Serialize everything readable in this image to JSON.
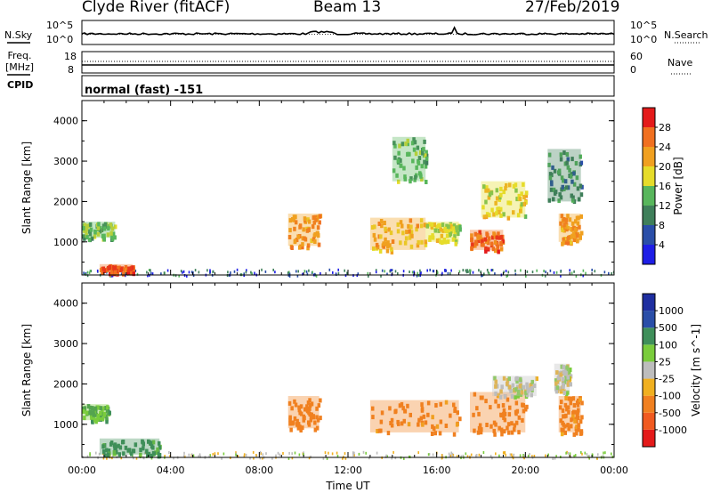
{
  "header": {
    "station": "Clyde River (fitACF)",
    "beam": "Beam 13",
    "date": "27/Feb/2019"
  },
  "noise_panel": {
    "left_label": "N.Sky",
    "right_label": "N.Search",
    "left_ticks": [
      "10^5",
      "10^0"
    ],
    "right_ticks": [
      "10^5",
      "10^0"
    ]
  },
  "freq_panel": {
    "label_top": "Freq.",
    "label_unit": "[MHz]",
    "left_ticks": [
      "18",
      "8"
    ],
    "right_ticks": [
      "60",
      "0"
    ],
    "right_label": "Nave"
  },
  "cpid": {
    "label": "CPID",
    "value": "normal (fast) -151"
  },
  "time_axis": {
    "label": "Time UT",
    "ticks": [
      "00:00",
      "04:00",
      "08:00",
      "12:00",
      "16:00",
      "20:00",
      "00:00"
    ]
  },
  "colors": {
    "power_scale": [
      "#1e1ee6",
      "#2a4ea8",
      "#3f7f5a",
      "#58b65c",
      "#e6dc2a",
      "#f0a020",
      "#f07020",
      "#e41a1a"
    ],
    "velocity_scale": [
      "#e41a1a",
      "#f05a20",
      "#f08020",
      "#f0b020",
      "#bdbdbd",
      "#7acc3c",
      "#3f8f5a",
      "#2a4ea8",
      "#1e2ea0"
    ]
  },
  "chart_data": [
    {
      "type": "heatmap",
      "title": "Power",
      "ylabel": "Slant Range [km]",
      "xlabel": "",
      "ylim": [
        180,
        4500
      ],
      "xlim_hours": [
        0,
        24
      ],
      "yticks": [
        1000,
        2000,
        3000,
        4000
      ],
      "colorbar": {
        "label": "Power [dB]",
        "ticks": [
          "4",
          "8",
          "12",
          "16",
          "20",
          "24",
          "28"
        ],
        "range": [
          0,
          30
        ]
      },
      "regions": [
        {
          "t": [
            0.0,
            1.5
          ],
          "r": [
            1100,
            1500
          ],
          "value": 14
        },
        {
          "t": [
            0.8,
            2.3
          ],
          "r": [
            250,
            450
          ],
          "value": 26
        },
        {
          "t": [
            9.3,
            10.7
          ],
          "r": [
            900,
            1700
          ],
          "value": 22
        },
        {
          "t": [
            13.0,
            15.5
          ],
          "r": [
            800,
            1600
          ],
          "value": 20
        },
        {
          "t": [
            15.5,
            17.0
          ],
          "r": [
            1000,
            1500
          ],
          "value": 16
        },
        {
          "t": [
            17.5,
            19.0
          ],
          "r": [
            800,
            1300
          ],
          "value": 24
        },
        {
          "t": [
            18.0,
            20.0
          ],
          "r": [
            1600,
            2500
          ],
          "value": 18
        },
        {
          "t": [
            21.5,
            22.5
          ],
          "r": [
            1000,
            1700
          ],
          "value": 22
        },
        {
          "t": [
            14.0,
            15.5
          ],
          "r": [
            2500,
            3600
          ],
          "value": 12
        },
        {
          "t": [
            21.0,
            22.5
          ],
          "r": [
            2000,
            3300
          ],
          "value": 10
        }
      ]
    },
    {
      "type": "heatmap",
      "title": "Velocity",
      "ylabel": "Slant Range [km]",
      "xlabel": "Time UT",
      "ylim": [
        180,
        4500
      ],
      "xlim_hours": [
        0,
        24
      ],
      "yticks": [
        1000,
        2000,
        3000,
        4000
      ],
      "colorbar": {
        "label": "Velocity [m s^-1]",
        "ticks": [
          "1000",
          "500",
          "100",
          "25",
          "-25",
          "-100",
          "-500",
          "-1000"
        ]
      },
      "regions": [
        {
          "t": [
            0.0,
            1.2
          ],
          "r": [
            1100,
            1500
          ],
          "value": 100
        },
        {
          "t": [
            0.8,
            3.5
          ],
          "r": [
            250,
            650
          ],
          "value": 150
        },
        {
          "t": [
            9.3,
            10.7
          ],
          "r": [
            900,
            1700
          ],
          "value": -200
        },
        {
          "t": [
            13.0,
            17.0
          ],
          "r": [
            800,
            1600
          ],
          "value": -150
        },
        {
          "t": [
            17.5,
            20.0
          ],
          "r": [
            800,
            1800
          ],
          "value": -200
        },
        {
          "t": [
            18.5,
            20.5
          ],
          "r": [
            1700,
            2200
          ],
          "value": 0
        },
        {
          "t": [
            21.5,
            22.5
          ],
          "r": [
            800,
            1700
          ],
          "value": -150
        },
        {
          "t": [
            21.3,
            22.0
          ],
          "r": [
            1800,
            2500
          ],
          "value": 0
        }
      ]
    }
  ]
}
